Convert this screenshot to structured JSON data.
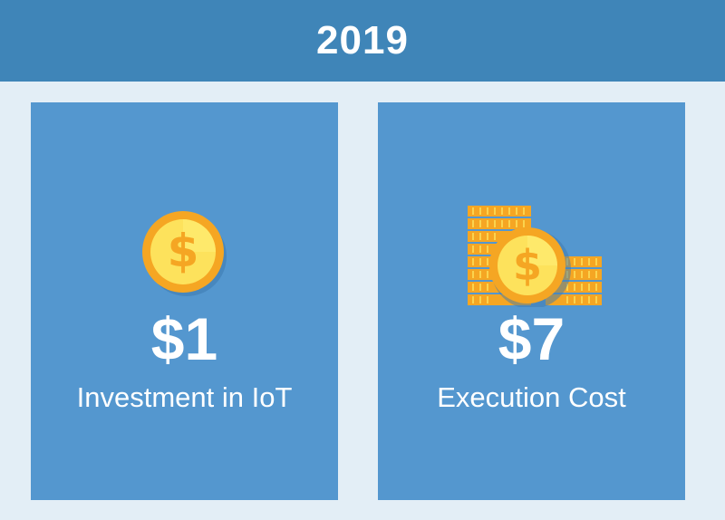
{
  "header": {
    "year": "2019"
  },
  "cards": [
    {
      "amount": "$1",
      "caption": "Investment in IoT",
      "icon": "single-coin-icon"
    },
    {
      "amount": "$7",
      "caption": "Execution Cost",
      "icon": "coin-stacks-icon"
    }
  ],
  "colors": {
    "header": "#3f85b8",
    "card": "#5497cf",
    "background": "#e3eef6",
    "coin_outer": "#f5a623",
    "coin_inner": "#fde25c",
    "coin_symbol": "#f5a623"
  }
}
